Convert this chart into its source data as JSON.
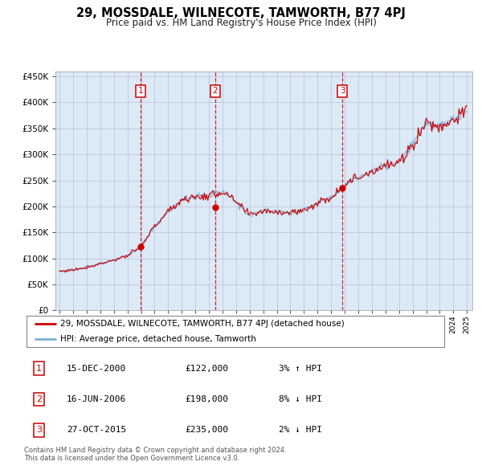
{
  "title": "29, MOSSDALE, WILNECOTE, TAMWORTH, B77 4PJ",
  "subtitle": "Price paid vs. HM Land Registry's House Price Index (HPI)",
  "background_color": "#dce9f7",
  "plot_bg_color": "#dce9f7",
  "legend_label_red": "29, MOSSDALE, WILNECOTE, TAMWORTH, B77 4PJ (detached house)",
  "legend_label_blue": "HPI: Average price, detached house, Tamworth",
  "footer": "Contains HM Land Registry data © Crown copyright and database right 2024.\nThis data is licensed under the Open Government Licence v3.0.",
  "transactions": [
    {
      "num": 1,
      "date": "15-DEC-2000",
      "price": 122000,
      "pct": "3%",
      "dir": "↑",
      "year": 2000.96
    },
    {
      "num": 2,
      "date": "16-JUN-2006",
      "price": 198000,
      "pct": "8%",
      "dir": "↓",
      "year": 2006.46
    },
    {
      "num": 3,
      "date": "27-OCT-2015",
      "price": 235000,
      "pct": "2%",
      "dir": "↓",
      "year": 2015.82
    }
  ],
  "ylim": [
    0,
    460000
  ],
  "yticks": [
    0,
    50000,
    100000,
    150000,
    200000,
    250000,
    300000,
    350000,
    400000,
    450000
  ],
  "year_start": 1995,
  "year_end": 2025,
  "red_color": "#cc0000",
  "blue_color": "#7ab0d4",
  "vline_color": "#cc0000",
  "marker_color": "#cc0000",
  "box_color": "#cc0000",
  "grid_color": "#b0b8cc",
  "anchor_years": [
    1995,
    1996,
    1997,
    1998,
    1999,
    2000,
    2001,
    2002,
    2003,
    2004,
    2005,
    2006,
    2007,
    2008,
    2009,
    2010,
    2011,
    2012,
    2013,
    2014,
    2015,
    2016,
    2017,
    2018,
    2019,
    2020,
    2021,
    2022,
    2023,
    2024,
    2025
  ],
  "hpi_anchors": [
    75000,
    78000,
    83000,
    90000,
    97000,
    105000,
    122000,
    162000,
    190000,
    213000,
    218000,
    220000,
    228000,
    208000,
    183000,
    192000,
    190000,
    188000,
    193000,
    206000,
    218000,
    242000,
    256000,
    268000,
    278000,
    282000,
    318000,
    362000,
    352000,
    368000,
    382000
  ],
  "red_anchors": [
    75000,
    78000,
    83000,
    90000,
    97000,
    105000,
    122000,
    162000,
    190000,
    213000,
    218000,
    220000,
    228000,
    208000,
    183000,
    192000,
    190000,
    188000,
    193000,
    206000,
    218000,
    242000,
    256000,
    268000,
    278000,
    282000,
    318000,
    362000,
    352000,
    368000,
    382000
  ]
}
